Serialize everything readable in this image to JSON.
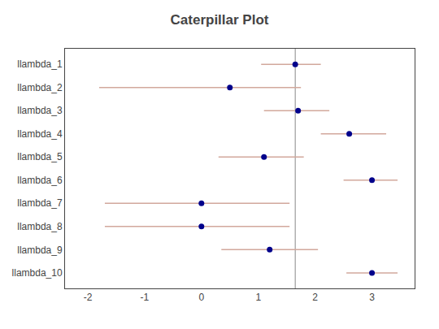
{
  "chart_data": {
    "type": "caterpillar",
    "title": "Caterpillar Plot",
    "categories": [
      "llambda_1",
      "llambda_2",
      "llambda_3",
      "llambda_4",
      "llambda_5",
      "llambda_6",
      "llambda_7",
      "llambda_8",
      "llambda_9",
      "llambda_10"
    ],
    "values": [
      1.65,
      0.5,
      1.7,
      2.6,
      1.1,
      3.0,
      0.0,
      0.0,
      1.2,
      3.0
    ],
    "color": "#00008B",
    "error_bars": {
      "low": [
        1.05,
        -1.8,
        1.1,
        2.1,
        0.3,
        2.5,
        -1.7,
        -1.7,
        0.35,
        2.55
      ],
      "high": [
        2.1,
        1.75,
        2.25,
        3.25,
        1.8,
        3.45,
        1.55,
        1.55,
        2.05,
        3.45
      ],
      "color": "#D2A89C"
    },
    "reference_line": {
      "x": 1.65,
      "color": "#888888"
    },
    "xlim": [
      -2.4,
      3.75
    ],
    "xticks": [
      -2,
      -1,
      0,
      1,
      2,
      3
    ],
    "grid": false
  }
}
